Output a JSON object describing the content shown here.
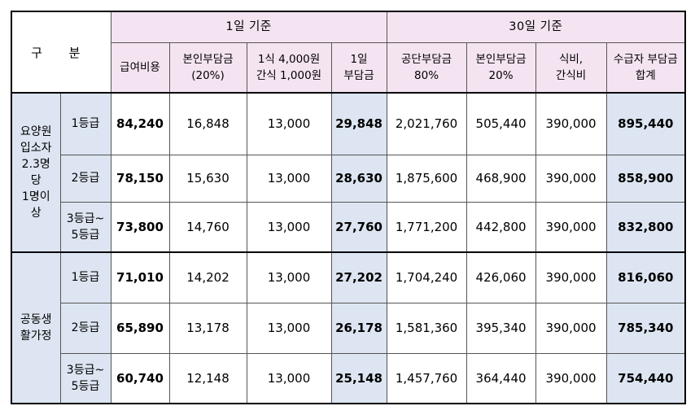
{
  "table": {
    "gubun": "구 분",
    "group_1day": "1일 기준",
    "group_30day": "30일 기준",
    "headers": [
      [
        "급여비용"
      ],
      [
        "본인부담금",
        "(20%)"
      ],
      [
        "1식 4,000원",
        "간식 1,000원"
      ],
      [
        "1일",
        "부담금"
      ],
      [
        "공단부담금",
        "80%"
      ],
      [
        "본인부담금",
        "20%"
      ],
      [
        "식비,",
        "간식비"
      ],
      [
        "수급자 부담금",
        "합계"
      ]
    ],
    "sections": [
      {
        "label": [
          "요양원",
          "입소자",
          "2.3명",
          "당",
          "1명이",
          "상"
        ],
        "rows": [
          {
            "grade": [
              "1등급"
            ],
            "values": [
              "84,240",
              "16,848",
              "13,000",
              "29,848",
              "2,021,760",
              "505,440",
              "390,000",
              "895,440"
            ]
          },
          {
            "grade": [
              "2등급"
            ],
            "values": [
              "78,150",
              "15,630",
              "13,000",
              "28,630",
              "1,875,600",
              "468,900",
              "390,000",
              "858,900"
            ]
          },
          {
            "grade": [
              "3등급~",
              "5등급"
            ],
            "values": [
              "73,800",
              "14,760",
              "13,000",
              "27,760",
              "1,771,200",
              "442,800",
              "390,000",
              "832,800"
            ]
          }
        ]
      },
      {
        "label": [
          "공동생",
          "활가정"
        ],
        "rows": [
          {
            "grade": [
              "1등급"
            ],
            "values": [
              "71,010",
              "14,202",
              "13,000",
              "27,202",
              "1,704,240",
              "426,060",
              "390,000",
              "816,060"
            ]
          },
          {
            "grade": [
              "2등급"
            ],
            "values": [
              "65,890",
              "13,178",
              "13,000",
              "26,178",
              "1,581,360",
              "395,340",
              "390,000",
              "785,340"
            ]
          },
          {
            "grade": [
              "3등급~",
              "5등급"
            ],
            "values": [
              "60,740",
              "12,148",
              "13,000",
              "25,148",
              "1,457,760",
              "364,440",
              "390,000",
              "754,440"
            ]
          }
        ]
      }
    ]
  }
}
